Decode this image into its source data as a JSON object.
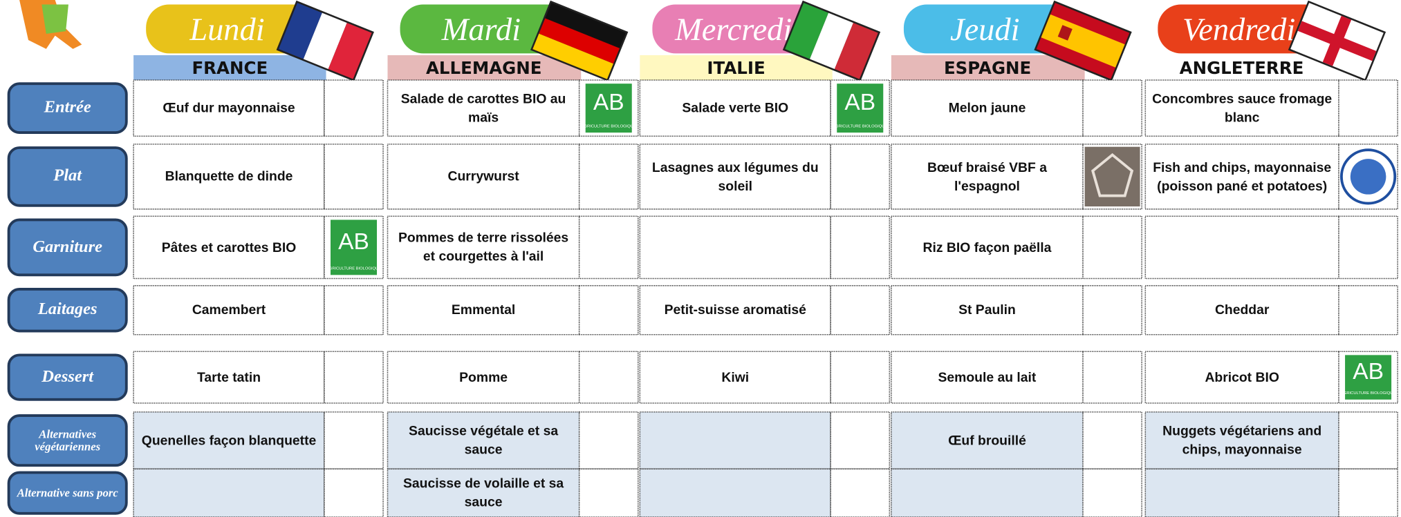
{
  "days": [
    {
      "name": "Lundi",
      "country": "FRANCE"
    },
    {
      "name": "Mardi",
      "country": "ALLEMAGNE"
    },
    {
      "name": "Mercredi",
      "country": "ITALIE"
    },
    {
      "name": "Jeudi",
      "country": "ESPAGNE"
    },
    {
      "name": "Vendredi",
      "country": "ANGLETERRE"
    }
  ],
  "rows": [
    {
      "label": "Entrée",
      "cells": [
        "Œuf dur mayonnaise",
        "Salade de carottes BIO au maïs",
        "Salade verte BIO",
        "Melon jaune",
        "Concombres sauce fromage blanc"
      ]
    },
    {
      "label": "Plat",
      "cells": [
        "Blanquette de dinde",
        "Currywurst",
        "Lasagnes aux légumes du soleil",
        "Bœuf braisé VBF a l'espagnol",
        "Fish and chips, mayonnaise (poisson pané et potatoes)"
      ]
    },
    {
      "label": "Garniture",
      "cells": [
        "Pâtes et carottes BIO",
        "Pommes de terre rissolées et courgettes à l'ail",
        null,
        "Riz BIO façon paëlla",
        null
      ]
    },
    {
      "label": "Laitages",
      "cells": [
        "Camembert",
        "Emmental",
        "Petit-suisse aromatisé",
        "St Paulin",
        "Cheddar"
      ]
    },
    {
      "label": "Dessert",
      "cells": [
        "Tarte tatin",
        "Pomme",
        "Kiwi",
        "Semoule au lait",
        "Abricot BIO"
      ]
    },
    {
      "label": "Alternatives végétariennes",
      "cells": [
        "Quenelles façon blanquette",
        "Saucisse végétale et sa sauce",
        null,
        "Œuf brouillé",
        "Nuggets végétariens and chips, mayonnaise"
      ]
    },
    {
      "label": "Alternative sans porc",
      "cells": [
        null,
        "Saucisse de volaille et sa sauce",
        null,
        null,
        null
      ]
    }
  ],
  "ab_logo": {
    "mark": "AB",
    "caption": "AGRICULTURE BIOLOGIQUE"
  }
}
